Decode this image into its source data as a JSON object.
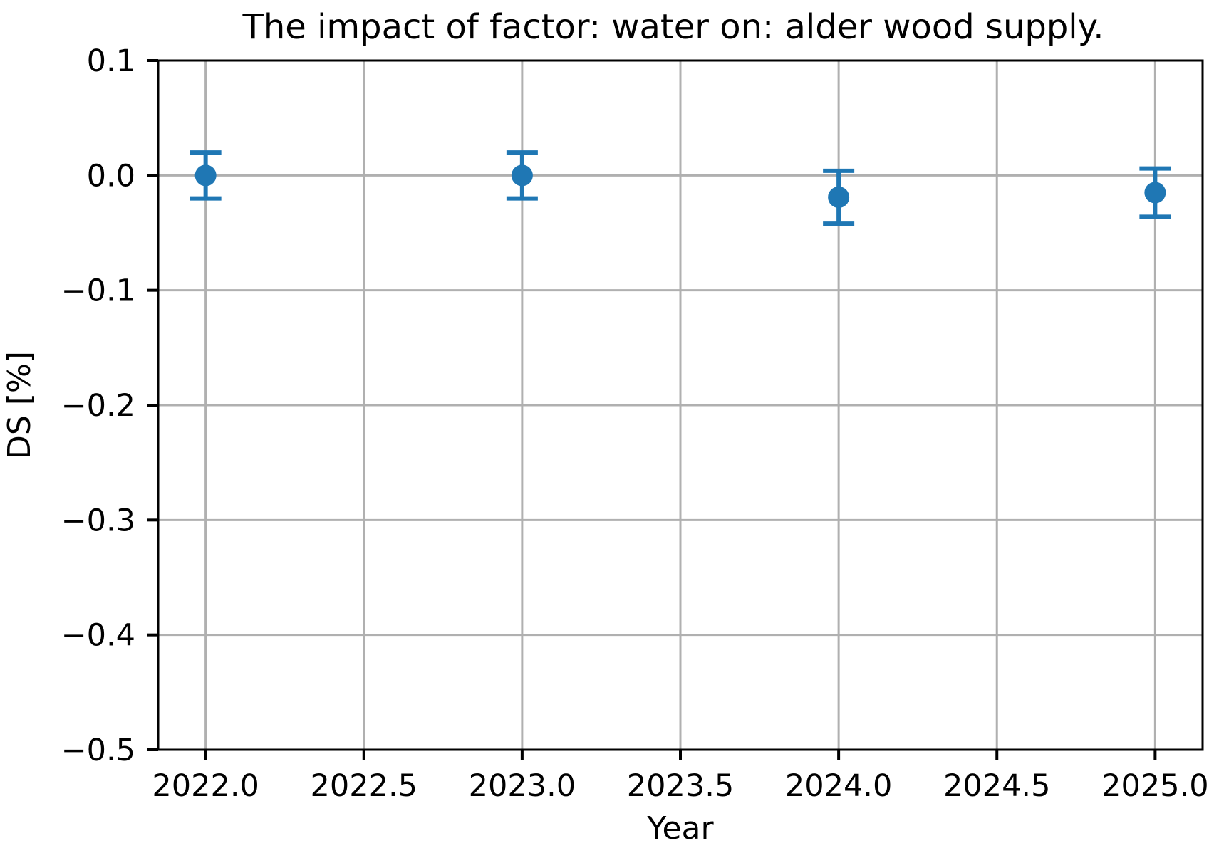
{
  "figure": {
    "background_color": "#ffffff"
  },
  "chart_data": {
    "type": "scatter",
    "error_bars": true,
    "title": "The impact of factor: water on: alder wood supply.",
    "xlabel": "Year",
    "ylabel": "DS [%]",
    "x": [
      2022.0,
      2023.0,
      2024.0,
      2025.0
    ],
    "y": [
      0.0,
      0.0,
      -0.019,
      -0.015
    ],
    "yerr": [
      0.02,
      0.02,
      0.023,
      0.021
    ],
    "xlim": [
      2021.85,
      2025.15
    ],
    "ylim": [
      -0.5,
      0.1
    ],
    "x_ticks": [
      2022.0,
      2022.5,
      2023.0,
      2023.5,
      2024.0,
      2024.5,
      2025.0
    ],
    "x_tick_labels": [
      "2022.0",
      "2022.5",
      "2023.0",
      "2023.5",
      "2024.0",
      "2024.5",
      "2025.0"
    ],
    "y_ticks": [
      0.1,
      0.0,
      -0.1,
      -0.2,
      -0.3,
      -0.4,
      -0.5
    ],
    "y_tick_labels": [
      "0.1",
      "0.0",
      "−0.1",
      "−0.2",
      "−0.3",
      "−0.4",
      "−0.5"
    ],
    "grid": true,
    "legend_position": "none",
    "marker_color": "#1f77b4",
    "grid_color": "#b0b0b0",
    "axis_color": "#000000"
  }
}
